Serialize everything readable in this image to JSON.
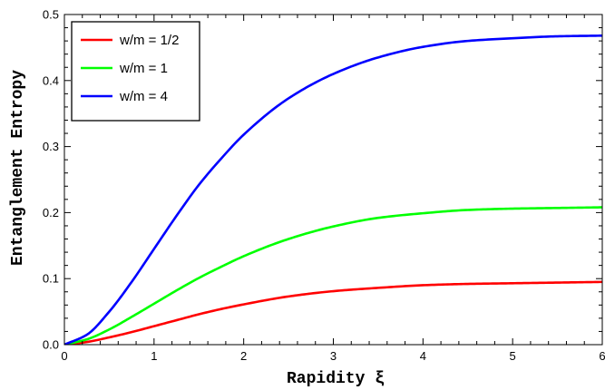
{
  "chart_data": {
    "type": "line",
    "xlabel": "Rapidity ξ",
    "ylabel": "Entanglement Entropy",
    "xlim": [
      0,
      6
    ],
    "ylim": [
      0,
      0.5
    ],
    "xticks": [
      "0",
      "1",
      "2",
      "3",
      "4",
      "5",
      "6"
    ],
    "yticks": [
      "0.0",
      "0.1",
      "0.2",
      "0.3",
      "0.4",
      "0.5"
    ],
    "grid": false,
    "legend_position": "top-left",
    "series": [
      {
        "name": "w/m = 1/2",
        "color": "#ff0000",
        "x": [
          0,
          0.25,
          0.5,
          0.75,
          1,
          1.25,
          1.5,
          1.75,
          2,
          2.5,
          3,
          3.5,
          4,
          4.5,
          5,
          5.5,
          6
        ],
        "y": [
          0,
          0.004,
          0.011,
          0.019,
          0.028,
          0.037,
          0.046,
          0.054,
          0.061,
          0.073,
          0.081,
          0.086,
          0.09,
          0.092,
          0.093,
          0.094,
          0.095
        ]
      },
      {
        "name": "w/m = 1",
        "color": "#00ff00",
        "x": [
          0,
          0.25,
          0.5,
          0.75,
          1,
          1.25,
          1.5,
          1.75,
          2,
          2.5,
          3,
          3.5,
          4,
          4.5,
          5,
          5.5,
          6
        ],
        "y": [
          0,
          0.008,
          0.023,
          0.042,
          0.062,
          0.082,
          0.101,
          0.118,
          0.134,
          0.16,
          0.179,
          0.192,
          0.199,
          0.204,
          0.206,
          0.207,
          0.208
        ]
      },
      {
        "name": "w/m = 4",
        "color": "#0000ff",
        "x": [
          0,
          0.25,
          0.5,
          0.75,
          1,
          1.25,
          1.5,
          1.75,
          2,
          2.5,
          3,
          3.5,
          4,
          4.5,
          5,
          5.5,
          6
        ],
        "y": [
          0,
          0.015,
          0.05,
          0.095,
          0.145,
          0.195,
          0.242,
          0.282,
          0.318,
          0.373,
          0.41,
          0.435,
          0.451,
          0.46,
          0.464,
          0.467,
          0.468
        ]
      }
    ]
  }
}
